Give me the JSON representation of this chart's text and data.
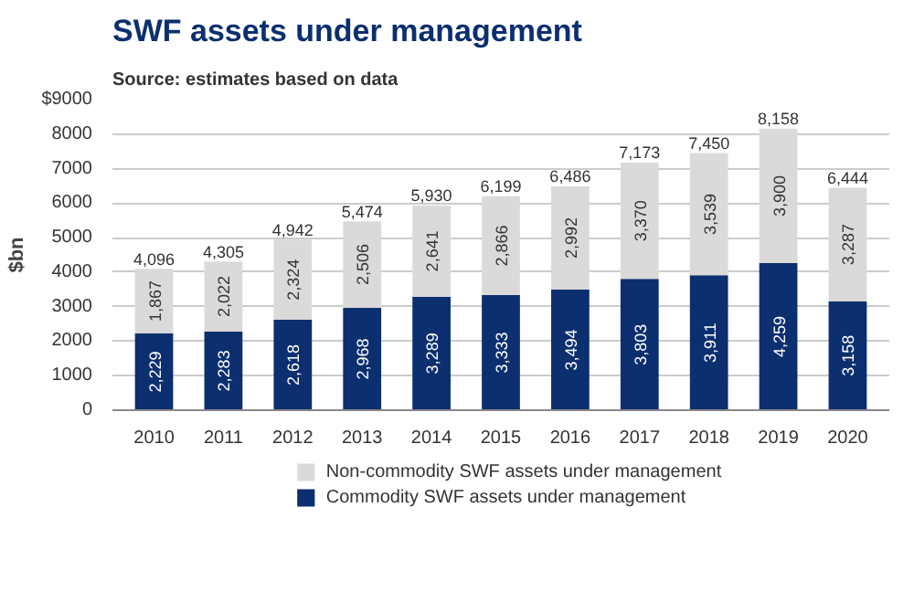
{
  "chart_data": {
    "type": "bar",
    "title": "SWF assets under management",
    "subtitle": "Source: estimates based on data",
    "ylabel": "$bn",
    "stacked": true,
    "categories": [
      "2010",
      "2011",
      "2012",
      "2013",
      "2014",
      "2015",
      "2016",
      "2017",
      "2018",
      "2019",
      "2020"
    ],
    "series": [
      {
        "name": "Commodity SWF assets under management",
        "color": "#0b2f6f",
        "values": [
          2229,
          2283,
          2618,
          2968,
          3289,
          3333,
          3494,
          3803,
          3911,
          4259,
          3158
        ],
        "value_labels": [
          "2,229",
          "2,283",
          "2,618",
          "2,968",
          "3,289",
          "3,333",
          "3,494",
          "3,803",
          "3,911",
          "4,259",
          "3,158"
        ]
      },
      {
        "name": "Non-commodity SWF assets under management",
        "color": "#dcd9d9",
        "values": [
          1867,
          2022,
          2324,
          2506,
          2641,
          2866,
          2992,
          3370,
          3539,
          3900,
          3287
        ],
        "value_labels": [
          "1,867",
          "2,022",
          "2,324",
          "2,506",
          "2,641",
          "2,866",
          "2,992",
          "3,370",
          "3,539",
          "3,900",
          "3,287"
        ]
      }
    ],
    "totals": [
      "4,096",
      "4,305",
      "4,942",
      "5,474",
      "5,930",
      "6,199",
      "6,486",
      "7,173",
      "7,450",
      "8,158",
      "6,444"
    ],
    "ylim": [
      0,
      9000
    ],
    "yticks": [
      0,
      1000,
      2000,
      3000,
      4000,
      5000,
      6000,
      7000,
      8000,
      {
        "value": 9000,
        "label": "$9000"
      }
    ],
    "grid": "y",
    "legend": "bottom"
  }
}
